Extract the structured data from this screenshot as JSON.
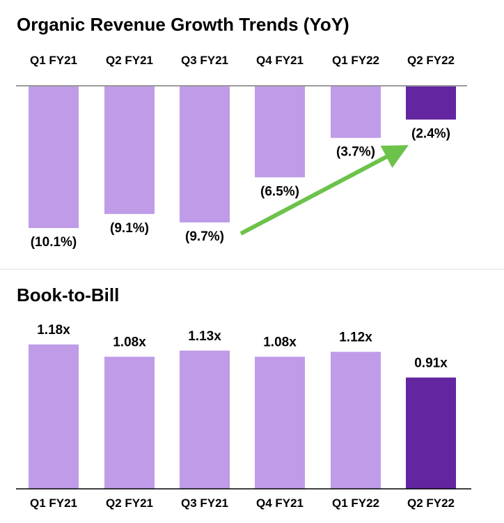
{
  "chart_data": [
    {
      "type": "bar",
      "title": "Organic Revenue Growth Trends (YoY)",
      "categories": [
        "Q1 FY21",
        "Q2 FY21",
        "Q3 FY21",
        "Q4 FY21",
        "Q1 FY22",
        "Q2 FY22"
      ],
      "values": [
        -10.1,
        -9.1,
        -9.7,
        -6.5,
        -3.7,
        -2.4
      ],
      "value_labels": [
        "(10.1%)",
        "(9.1%)",
        "(9.7%)",
        "(6.5%)",
        "(3.7%)",
        "(2.4%)"
      ],
      "ylim": [
        -11.5,
        0
      ],
      "xlabel": "",
      "ylabel": "",
      "category_axis": "top",
      "highlight_index": 5,
      "annotation": {
        "type": "trend-arrow",
        "from": "Q3 FY21",
        "to": "Q2 FY22",
        "direction": "up"
      },
      "colors": {
        "bar": "#bf9be8",
        "highlight": "#6325a0",
        "axis": "#9a9a9a",
        "arrow": "#6cc24a"
      }
    },
    {
      "type": "bar",
      "title": "Book-to-Bill",
      "categories": [
        "Q1 FY21",
        "Q2 FY21",
        "Q3 FY21",
        "Q4 FY21",
        "Q1 FY22",
        "Q2 FY22"
      ],
      "values": [
        1.18,
        1.08,
        1.13,
        1.08,
        1.12,
        0.91
      ],
      "value_labels": [
        "1.18x",
        "1.08x",
        "1.13x",
        "1.08x",
        "1.12x",
        "0.91x"
      ],
      "ylim": [
        0,
        1.18
      ],
      "xlabel": "",
      "ylabel": "",
      "category_axis": "bottom",
      "highlight_index": 5,
      "colors": {
        "bar": "#bf9be8",
        "highlight": "#6325a0",
        "axis": "#000000",
        "divider": "#dddddd"
      }
    }
  ]
}
